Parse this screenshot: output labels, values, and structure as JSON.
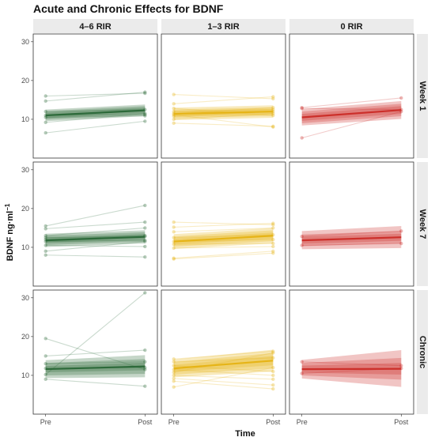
{
  "chart_data": {
    "type": "line",
    "title": "Acute and Chronic Effects for BDNF",
    "xlabel": "Time",
    "ylabel": "BDNF ng·ml",
    "ylabel_sup": "−1",
    "x_categories": [
      "Pre",
      "Post"
    ],
    "ylim": [
      0,
      32
    ],
    "yticks": [
      10,
      20,
      30
    ],
    "column_facets": [
      "4–6 RIR",
      "1–3 RIR",
      "0 RIR"
    ],
    "row_facets": [
      "Week 1",
      "Week 7",
      "Chronic"
    ],
    "colors": {
      "4–6 RIR": "#2d6a3a",
      "1–3 RIR": "#e6b417",
      "0 RIR": "#cc2f2a"
    },
    "panels": [
      {
        "col": "4–6 RIR",
        "row": "Week 1",
        "mean": [
          11.0,
          12.3
        ],
        "bands": [
          [
            [
              10.3,
              11.7
            ],
            [
              11.6,
              13.0
            ]
          ],
          [
            [
              9.9,
              12.1
            ],
            [
              11.2,
              13.4
            ]
          ],
          [
            [
              9.5,
              12.5
            ],
            [
              10.8,
              13.8
            ]
          ]
        ],
        "subjects": [
          [
            16.0,
            16.7
          ],
          [
            14.7,
            17.0
          ],
          [
            12.0,
            12.5
          ],
          [
            11.0,
            11.2
          ],
          [
            10.5,
            10.9
          ],
          [
            9.2,
            11.5
          ],
          [
            6.5,
            9.5
          ]
        ]
      },
      {
        "col": "1–3 RIR",
        "row": "Week 1",
        "mean": [
          11.4,
          12.0
        ],
        "bands": [
          [
            [
              10.7,
              12.1
            ],
            [
              11.3,
              12.7
            ]
          ],
          [
            [
              10.3,
              12.5
            ],
            [
              10.9,
              13.1
            ]
          ],
          [
            [
              9.8,
              13.0
            ],
            [
              10.4,
              13.6
            ]
          ]
        ],
        "subjects": [
          [
            16.4,
            15.3
          ],
          [
            14.0,
            15.8
          ],
          [
            12.8,
            11.0
          ],
          [
            12.0,
            12.5
          ],
          [
            11.5,
            13.0
          ],
          [
            10.8,
            12.0
          ],
          [
            10.0,
            11.5
          ],
          [
            9.0,
            8.2
          ],
          [
            11.2,
            8.0
          ]
        ]
      },
      {
        "col": "0 RIR",
        "row": "Week 1",
        "mean": [
          10.5,
          12.4
        ],
        "bands": [
          [
            [
              9.6,
              11.4
            ],
            [
              11.4,
              13.4
            ]
          ],
          [
            [
              9.0,
              12.0
            ],
            [
              10.8,
              14.0
            ]
          ],
          [
            [
              8.4,
              12.6
            ],
            [
              10.1,
              14.7
            ]
          ]
        ],
        "subjects": [
          [
            13.0,
            15.5
          ],
          [
            12.8,
            12.5
          ],
          [
            5.2,
            12.0
          ]
        ]
      },
      {
        "col": "4–6 RIR",
        "row": "Week 7",
        "mean": [
          11.8,
          12.7
        ],
        "bands": [
          [
            [
              11.1,
              12.5
            ],
            [
              12.0,
              13.4
            ]
          ],
          [
            [
              10.6,
              13.0
            ],
            [
              11.5,
              13.9
            ]
          ],
          [
            [
              10.1,
              13.5
            ],
            [
              11.0,
              14.4
            ]
          ]
        ],
        "subjects": [
          [
            15.5,
            20.8
          ],
          [
            14.8,
            16.5
          ],
          [
            13.0,
            15.0
          ],
          [
            12.5,
            12.8
          ],
          [
            12.0,
            13.0
          ],
          [
            11.5,
            11.8
          ],
          [
            10.5,
            10.2
          ],
          [
            9.0,
            11.5
          ],
          [
            8.0,
            7.5
          ]
        ]
      },
      {
        "col": "1–3 RIR",
        "row": "Week 7",
        "mean": [
          11.5,
          13.0
        ],
        "bands": [
          [
            [
              10.8,
              12.2
            ],
            [
              12.2,
              13.8
            ]
          ],
          [
            [
              10.2,
              12.8
            ],
            [
              11.6,
              14.4
            ]
          ],
          [
            [
              9.6,
              13.4
            ],
            [
              11.0,
              15.0
            ]
          ]
        ],
        "subjects": [
          [
            16.5,
            15.8
          ],
          [
            15.2,
            16.2
          ],
          [
            14.0,
            15.0
          ],
          [
            12.5,
            13.2
          ],
          [
            11.5,
            12.0
          ],
          [
            10.8,
            11.0
          ],
          [
            9.8,
            10.2
          ],
          [
            7.2,
            9.0
          ],
          [
            7.0,
            8.5
          ]
        ]
      },
      {
        "col": "0 RIR",
        "row": "Week 7",
        "mean": [
          11.8,
          12.6
        ],
        "bands": [
          [
            [
              10.9,
              12.7
            ],
            [
              11.7,
              13.5
            ]
          ],
          [
            [
              10.3,
              13.3
            ],
            [
              11.0,
              14.2
            ]
          ],
          [
            [
              9.5,
              14.2
            ],
            [
              9.8,
              15.5
            ]
          ]
        ],
        "subjects": [
          [
            12.8,
            14.2
          ],
          [
            10.5,
            11.0
          ]
        ]
      },
      {
        "col": "4–6 RIR",
        "row": "Chronic",
        "mean": [
          11.6,
          12.3
        ],
        "bands": [
          [
            [
              10.8,
              12.4
            ],
            [
              11.3,
              13.3
            ]
          ],
          [
            [
              10.0,
              13.2
            ],
            [
              10.4,
              14.2
            ]
          ],
          [
            [
              9.3,
              13.9
            ],
            [
              9.5,
              15.2
            ]
          ]
        ],
        "subjects": [
          [
            19.5,
            11.5
          ],
          [
            15.0,
            16.5
          ],
          [
            13.0,
            13.5
          ],
          [
            11.8,
            12.0
          ],
          [
            10.2,
            31.3
          ],
          [
            9.0,
            7.2
          ]
        ]
      },
      {
        "col": "1–3 RIR",
        "row": "Chronic",
        "mean": [
          11.8,
          13.8
        ],
        "bands": [
          [
            [
              10.9,
              12.7
            ],
            [
              12.6,
              15.0
            ]
          ],
          [
            [
              10.2,
              13.4
            ],
            [
              11.8,
              15.8
            ]
          ],
          [
            [
              9.5,
              14.1
            ],
            [
              11.0,
              16.6
            ]
          ]
        ],
        "subjects": [
          [
            14.2,
            16.2
          ],
          [
            13.5,
            14.5
          ],
          [
            12.5,
            11.0
          ],
          [
            11.5,
            10.0
          ],
          [
            10.8,
            15.8
          ],
          [
            10.0,
            9.0
          ],
          [
            9.2,
            7.5
          ],
          [
            8.5,
            6.5
          ],
          [
            7.0,
            12.0
          ]
        ]
      },
      {
        "col": "0 RIR",
        "row": "Chronic",
        "mean": [
          11.6,
          11.7
        ],
        "bands": [
          [
            [
              10.7,
              12.5
            ],
            [
              10.2,
              13.2
            ]
          ],
          [
            [
              10.0,
              13.2
            ],
            [
              8.9,
              14.5
            ]
          ],
          [
            [
              9.2,
              14.0
            ],
            [
              7.0,
              16.5
            ]
          ]
        ],
        "subjects": [
          [
            13.5,
            12.5
          ],
          [
            10.5,
            11.8
          ]
        ]
      }
    ]
  }
}
